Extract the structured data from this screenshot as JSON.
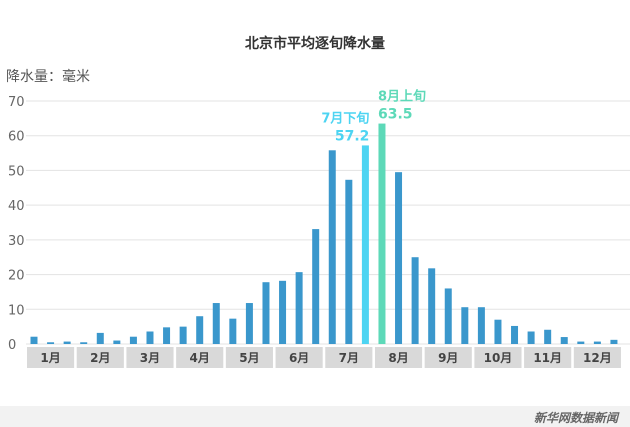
{
  "chart_data": {
    "type": "bar",
    "title": "北京市平均逐旬降水量",
    "ylabel": "降水量：毫米",
    "ylim": [
      0,
      70
    ],
    "yticks": [
      0,
      10,
      20,
      30,
      40,
      50,
      60,
      70
    ],
    "grid": true,
    "month_labels": [
      "1月",
      "2月",
      "3月",
      "4月",
      "5月",
      "6月",
      "7月",
      "8月",
      "9月",
      "10月",
      "11月",
      "12月"
    ],
    "values": [
      2.1,
      0.5,
      0.7,
      0.5,
      3.2,
      1.0,
      2.1,
      3.6,
      4.8,
      5.0,
      8.0,
      11.8,
      7.3,
      11.8,
      17.8,
      18.2,
      20.7,
      33.1,
      55.8,
      47.3,
      57.2,
      63.5,
      49.5,
      25.0,
      21.8,
      16.0,
      10.6,
      10.6,
      7.0,
      5.2,
      3.6,
      4.1,
      2.0,
      0.7,
      0.7,
      1.2
    ],
    "highlights": [
      {
        "index": 20,
        "label": "7月下旬",
        "value_label": "57.2",
        "color": "#4dd4f2"
      },
      {
        "index": 21,
        "label": "8月上旬",
        "value_label": "63.5",
        "color": "#5dd9b8"
      }
    ],
    "bar_color": "#3a97cc",
    "month_band_color": "#d9d9d9"
  },
  "footer": {
    "source": "新华网数据新闻"
  }
}
